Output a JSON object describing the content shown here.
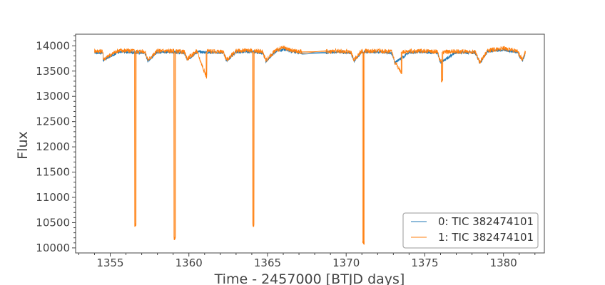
{
  "chart_data": {
    "type": "line",
    "xlabel": "Time - 2457000 [BTJD days]",
    "ylabel": "Flux",
    "xlim": [
      1352.8,
      1382.6
    ],
    "ylim": [
      9900,
      14230
    ],
    "x_ticks": [
      1355,
      1360,
      1365,
      1370,
      1375,
      1380
    ],
    "y_ticks": [
      10000,
      10500,
      11000,
      11500,
      12000,
      12500,
      13000,
      13500,
      14000
    ],
    "grid": false,
    "legend_position": "lower-right",
    "baseline_flux": 13880,
    "series": [
      {
        "name": "0: TIC 382474101",
        "color": "#1f77b4",
        "x": [
          1354.0,
          1354.5,
          1354.6,
          1355.5,
          1356.5,
          1357.2,
          1357.4,
          1358.0,
          1359.0,
          1359.7,
          1359.9,
          1360.5,
          1361.5,
          1362.2,
          1362.4,
          1363.0,
          1364.0,
          1364.7,
          1364.9,
          1365.5,
          1366.0,
          1366.5,
          1367.2,
          1368.7,
          1369.5,
          1370.3,
          1370.5,
          1371.0,
          1372.0,
          1372.9,
          1373.1,
          1374.0,
          1375.0,
          1375.8,
          1376.0,
          1377.0,
          1378.2,
          1378.5,
          1379.0,
          1380.0,
          1380.9,
          1381.2,
          1381.4
        ],
        "y": [
          13870,
          13860,
          13720,
          13880,
          13870,
          13860,
          13700,
          13880,
          13875,
          13860,
          13720,
          13880,
          13870,
          13860,
          13700,
          13880,
          13880,
          13860,
          13690,
          13890,
          13930,
          13890,
          13860,
          13870,
          13880,
          13860,
          13700,
          13880,
          13880,
          13860,
          13660,
          13870,
          13880,
          13860,
          13670,
          13870,
          13860,
          13660,
          13890,
          13920,
          13870,
          13700,
          13860
        ]
      },
      {
        "name": "1: TIC 382474101",
        "color": "#ff7f0e",
        "x": [
          1354.0,
          1354.5,
          1354.6,
          1355.5,
          1356.5,
          1356.6,
          1356.7,
          1357.2,
          1357.4,
          1358.0,
          1359.0,
          1359.1,
          1359.2,
          1359.7,
          1359.9,
          1360.5,
          1361.1,
          1361.2,
          1361.5,
          1362.2,
          1362.4,
          1363.0,
          1364.0,
          1364.1,
          1364.2,
          1364.7,
          1364.9,
          1365.5,
          1366.0,
          1366.5,
          1367.2,
          1368.7,
          1369.5,
          1370.3,
          1370.5,
          1371.0,
          1371.1,
          1371.2,
          1372.0,
          1372.9,
          1373.1,
          1373.5,
          1373.6,
          1374.0,
          1375.0,
          1375.8,
          1376.0,
          1376.1,
          1376.2,
          1377.0,
          1378.2,
          1378.5,
          1379.0,
          1380.0,
          1380.9,
          1381.2,
          1381.4
        ],
        "y": [
          13900,
          13890,
          13740,
          13910,
          13900,
          10460,
          13890,
          13890,
          13720,
          13900,
          13900,
          10200,
          13890,
          13880,
          13740,
          13900,
          13400,
          13900,
          13890,
          13880,
          13720,
          13900,
          13910,
          10440,
          13900,
          13880,
          13710,
          13910,
          13960,
          13910,
          13880,
          13890,
          13900,
          13880,
          13720,
          13900,
          10100,
          13900,
          13900,
          13880,
          13680,
          13480,
          13880,
          13890,
          13900,
          13880,
          13690,
          13300,
          13880,
          13890,
          13880,
          13680,
          13910,
          13950,
          13890,
          13720,
          13880
        ]
      }
    ]
  }
}
